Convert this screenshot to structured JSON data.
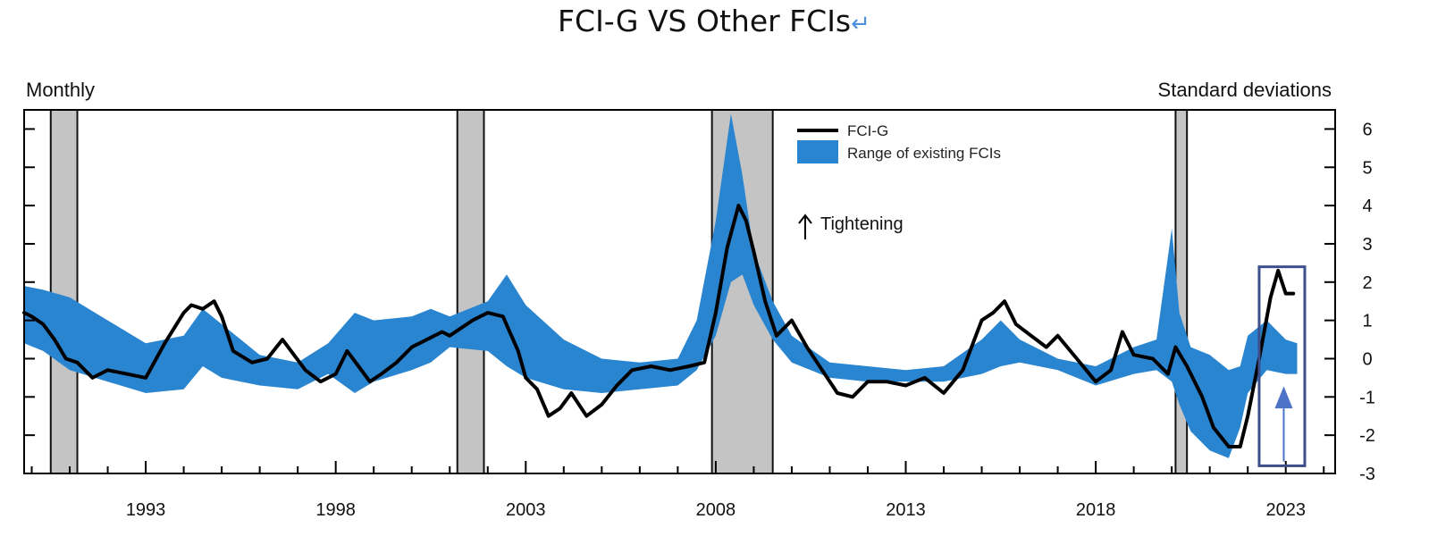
{
  "chart_data": {
    "type": "line",
    "title": "FCI-G VS Other FCIs",
    "title_glyph": "↵",
    "frequency_label": "Monthly",
    "ylabel": "Standard deviations",
    "xlim": [
      1989.8,
      2024.3
    ],
    "ylim": [
      -3,
      6.5
    ],
    "y_ticks": [
      6,
      5,
      4,
      3,
      2,
      1,
      0,
      -1,
      -2,
      -3
    ],
    "x_tick_labels": [
      "1993",
      "1998",
      "2003",
      "2008",
      "2013",
      "2018",
      "2023"
    ],
    "x_tick_years": [
      1993,
      1998,
      2003,
      2008,
      2013,
      2018,
      2023
    ],
    "legend": {
      "line_label": "FCI-G",
      "band_label": "Range of existing FCIs",
      "placement": "top-center"
    },
    "annotation": "Tightening",
    "recessions": [
      {
        "start": 1990.5,
        "end": 1991.2
      },
      {
        "start": 2001.2,
        "end": 2001.9
      },
      {
        "start": 2007.9,
        "end": 2009.5
      },
      {
        "start": 2020.1,
        "end": 2020.4
      }
    ],
    "highlight": {
      "x_start": 2022.3,
      "x_end": 2023.5,
      "y_low": -2.8,
      "y_high": 2.4
    },
    "colors": {
      "line": "#000000",
      "band": "#2a85d0",
      "recession": "#c4c4c4",
      "highlight": "#3d4f8a",
      "arrow": "#4d73c8"
    },
    "series": [
      {
        "name": "FCI-G",
        "x": [
          1989.8,
          1990.0,
          1990.3,
          1990.6,
          1990.9,
          1991.2,
          1991.6,
          1992.0,
          1992.5,
          1993.0,
          1993.5,
          1994.0,
          1994.2,
          1994.5,
          1994.8,
          1995.0,
          1995.3,
          1995.8,
          1996.2,
          1996.6,
          1996.9,
          1997.2,
          1997.6,
          1998.0,
          1998.3,
          1998.6,
          1998.9,
          1999.2,
          1999.6,
          2000.0,
          2000.4,
          2000.8,
          2001.0,
          2001.3,
          2001.6,
          2002.0,
          2002.4,
          2002.8,
          2003.0,
          2003.3,
          2003.6,
          2003.9,
          2004.2,
          2004.6,
          2005.0,
          2005.4,
          2005.8,
          2006.3,
          2006.8,
          2007.3,
          2007.7,
          2008.0,
          2008.3,
          2008.6,
          2008.8,
          2009.0,
          2009.3,
          2009.6,
          2010.0,
          2010.4,
          2010.8,
          2011.2,
          2011.6,
          2012.0,
          2012.5,
          2013.0,
          2013.5,
          2014.0,
          2014.5,
          2015.0,
          2015.3,
          2015.6,
          2015.9,
          2016.3,
          2016.7,
          2017.0,
          2017.5,
          2018.0,
          2018.4,
          2018.7,
          2019.0,
          2019.5,
          2019.9,
          2020.1,
          2020.4,
          2020.8,
          2021.1,
          2021.5,
          2021.8,
          2022.0,
          2022.3,
          2022.6,
          2022.8,
          2023.0,
          2023.2
        ],
        "values": [
          1.2,
          1.1,
          0.9,
          0.5,
          0.0,
          -0.1,
          -0.5,
          -0.3,
          -0.4,
          -0.5,
          0.4,
          1.2,
          1.4,
          1.3,
          1.5,
          1.1,
          0.2,
          -0.1,
          0.0,
          0.5,
          0.1,
          -0.3,
          -0.6,
          -0.4,
          0.2,
          -0.2,
          -0.6,
          -0.4,
          -0.1,
          0.3,
          0.5,
          0.7,
          0.6,
          0.8,
          1.0,
          1.2,
          1.1,
          0.2,
          -0.5,
          -0.8,
          -1.5,
          -1.3,
          -0.9,
          -1.5,
          -1.2,
          -0.7,
          -0.3,
          -0.2,
          -0.3,
          -0.2,
          -0.1,
          1.2,
          2.9,
          4.0,
          3.6,
          2.8,
          1.5,
          0.6,
          1.0,
          0.3,
          -0.3,
          -0.9,
          -1.0,
          -0.6,
          -0.6,
          -0.7,
          -0.5,
          -0.9,
          -0.3,
          1.0,
          1.2,
          1.5,
          0.9,
          0.6,
          0.3,
          0.6,
          0.0,
          -0.6,
          -0.3,
          0.7,
          0.1,
          0.0,
          -0.4,
          0.3,
          -0.2,
          -1.0,
          -1.8,
          -2.3,
          -2.3,
          -1.5,
          0.0,
          1.6,
          2.3,
          1.7,
          1.7
        ]
      },
      {
        "name": "Range of existing FCIs",
        "x": [
          1989.8,
          1990.3,
          1991.0,
          1992.0,
          1993.0,
          1994.0,
          1994.5,
          1995.0,
          1996.0,
          1997.0,
          1997.8,
          1998.5,
          1999.0,
          2000.0,
          2000.5,
          2001.0,
          2002.0,
          2002.5,
          2003.0,
          2004.0,
          2005.0,
          2006.0,
          2007.0,
          2007.5,
          2008.0,
          2008.4,
          2008.7,
          2009.0,
          2009.5,
          2010.0,
          2011.0,
          2012.0,
          2013.0,
          2014.0,
          2015.0,
          2015.5,
          2016.0,
          2017.0,
          2018.0,
          2019.0,
          2019.6,
          2020.0,
          2020.2,
          2020.5,
          2021.0,
          2021.5,
          2021.8,
          2022.0,
          2022.5,
          2023.0,
          2023.3
        ],
        "lower": [
          0.4,
          0.2,
          -0.3,
          -0.6,
          -0.9,
          -0.8,
          -0.2,
          -0.5,
          -0.7,
          -0.8,
          -0.4,
          -0.9,
          -0.6,
          -0.3,
          -0.1,
          0.3,
          0.2,
          -0.2,
          -0.5,
          -0.8,
          -0.9,
          -0.8,
          -0.7,
          -0.3,
          0.6,
          2.0,
          2.2,
          1.4,
          0.5,
          -0.1,
          -0.5,
          -0.6,
          -0.6,
          -0.6,
          -0.4,
          -0.2,
          -0.1,
          -0.3,
          -0.7,
          -0.4,
          -0.3,
          -0.6,
          -1.2,
          -1.9,
          -2.4,
          -2.6,
          -1.8,
          -0.9,
          -0.3,
          -0.4,
          -0.4
        ],
        "upper": [
          1.9,
          1.8,
          1.6,
          1.0,
          0.4,
          0.6,
          1.3,
          0.9,
          0.1,
          -0.1,
          0.4,
          1.2,
          1.0,
          1.1,
          1.3,
          1.1,
          1.5,
          2.2,
          1.4,
          0.5,
          0.0,
          -0.1,
          0.0,
          1.0,
          3.6,
          6.4,
          4.8,
          2.8,
          1.5,
          0.6,
          -0.1,
          -0.2,
          -0.3,
          -0.2,
          0.5,
          1.0,
          0.5,
          0.0,
          -0.2,
          0.3,
          0.5,
          3.4,
          1.2,
          0.3,
          0.1,
          -0.3,
          -0.2,
          0.6,
          1.0,
          0.5,
          0.4
        ]
      }
    ]
  }
}
